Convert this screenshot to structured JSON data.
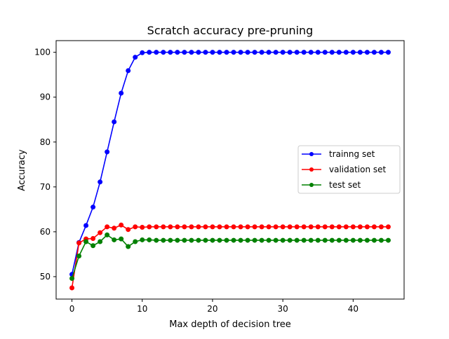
{
  "chart_data": {
    "type": "line",
    "title": "Scratch accuracy pre-pruning",
    "xlabel": "Max depth of decision tree",
    "ylabel": "Accuracy",
    "xlim": [
      -2.25,
      47.25
    ],
    "ylim": [
      45.0,
      102.6
    ],
    "xticks": [
      0,
      10,
      20,
      30,
      40
    ],
    "yticks": [
      50,
      60,
      70,
      80,
      90,
      100
    ],
    "grid": false,
    "legend_position": "center-right",
    "x": [
      0,
      1,
      2,
      3,
      4,
      5,
      6,
      7,
      8,
      9,
      10,
      11,
      12,
      13,
      14,
      15,
      16,
      17,
      18,
      19,
      20,
      21,
      22,
      23,
      24,
      25,
      26,
      27,
      28,
      29,
      30,
      31,
      32,
      33,
      34,
      35,
      36,
      37,
      38,
      39,
      40,
      41,
      42,
      43,
      44,
      45
    ],
    "series": [
      {
        "name": "trainng set",
        "color": "#0000ff",
        "values": [
          50.5,
          57.6,
          61.4,
          65.5,
          71.1,
          77.8,
          84.5,
          90.9,
          95.9,
          98.9,
          99.9,
          100,
          100,
          100,
          100,
          100,
          100,
          100,
          100,
          100,
          100,
          100,
          100,
          100,
          100,
          100,
          100,
          100,
          100,
          100,
          100,
          100,
          100,
          100,
          100,
          100,
          100,
          100,
          100,
          100,
          100,
          100,
          100,
          100,
          100,
          100
        ]
      },
      {
        "name": "validation set",
        "color": "#ff0000",
        "values": [
          47.5,
          57.5,
          58.4,
          58.5,
          59.8,
          61.1,
          60.8,
          61.5,
          60.5,
          61.1,
          61.0,
          61.1,
          61.1,
          61.1,
          61.1,
          61.1,
          61.1,
          61.1,
          61.1,
          61.1,
          61.1,
          61.1,
          61.1,
          61.1,
          61.1,
          61.1,
          61.1,
          61.1,
          61.1,
          61.1,
          61.1,
          61.1,
          61.1,
          61.1,
          61.1,
          61.1,
          61.1,
          61.1,
          61.1,
          61.1,
          61.1,
          61.1,
          61.1,
          61.1,
          61.1,
          61.1
        ]
      },
      {
        "name": "test set",
        "color": "#008000",
        "values": [
          49.6,
          54.6,
          57.8,
          56.9,
          57.8,
          59.3,
          58.2,
          58.4,
          56.7,
          57.8,
          58.2,
          58.2,
          58.1,
          58.1,
          58.1,
          58.1,
          58.1,
          58.1,
          58.1,
          58.1,
          58.1,
          58.1,
          58.1,
          58.1,
          58.1,
          58.1,
          58.1,
          58.1,
          58.1,
          58.1,
          58.1,
          58.1,
          58.1,
          58.1,
          58.1,
          58.1,
          58.1,
          58.1,
          58.1,
          58.1,
          58.1,
          58.1,
          58.1,
          58.1,
          58.1,
          58.1
        ]
      }
    ]
  }
}
